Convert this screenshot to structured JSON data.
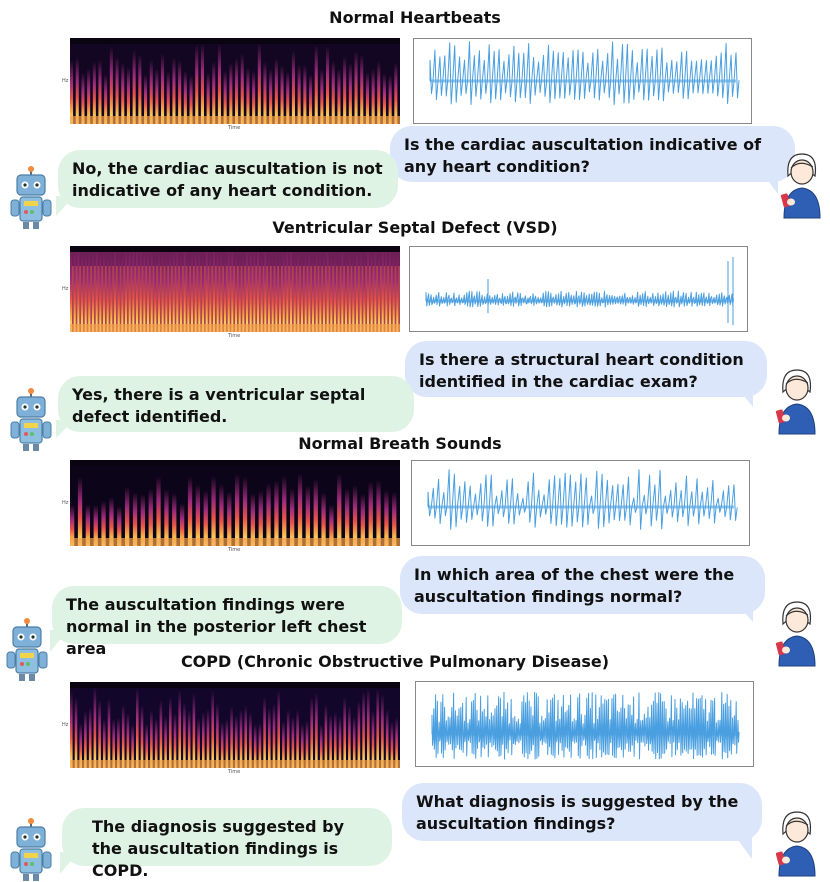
{
  "sections": [
    {
      "title": "Normal Heartbeats",
      "spec_ylabel": "Hz",
      "spec_xlabel": "Time",
      "question": "Is the cardiac auscultation indicative of any heart condition?",
      "answer": "No, the cardiac auscultation is not indicative of any heart condition."
    },
    {
      "title": "Ventricular Septal Defect (VSD)",
      "spec_ylabel": "Hz",
      "spec_xlabel": "Time",
      "question": "Is there a structural heart condition identified in the cardiac exam?",
      "answer": "Yes, there is a ventricular septal defect identified."
    },
    {
      "title": "Normal Breath Sounds",
      "spec_ylabel": "Hz",
      "spec_xlabel": "Time",
      "question": "In which area of the chest were the auscultation findings normal?",
      "answer": "The auscultation findings were normal in the posterior left chest area"
    },
    {
      "title": "COPD (Chronic Obstructive Pulmonary Disease)",
      "spec_ylabel": "Hz",
      "spec_xlabel": "Time",
      "question": "What diagnosis is suggested by the auscultation findings?",
      "answer": "The diagnosis suggested by the auscultation findings is COPD."
    }
  ],
  "colors": {
    "user_bubble": "#dbe6fb",
    "bot_bubble": "#dff3e4",
    "waveform": "#4a9fe0"
  }
}
